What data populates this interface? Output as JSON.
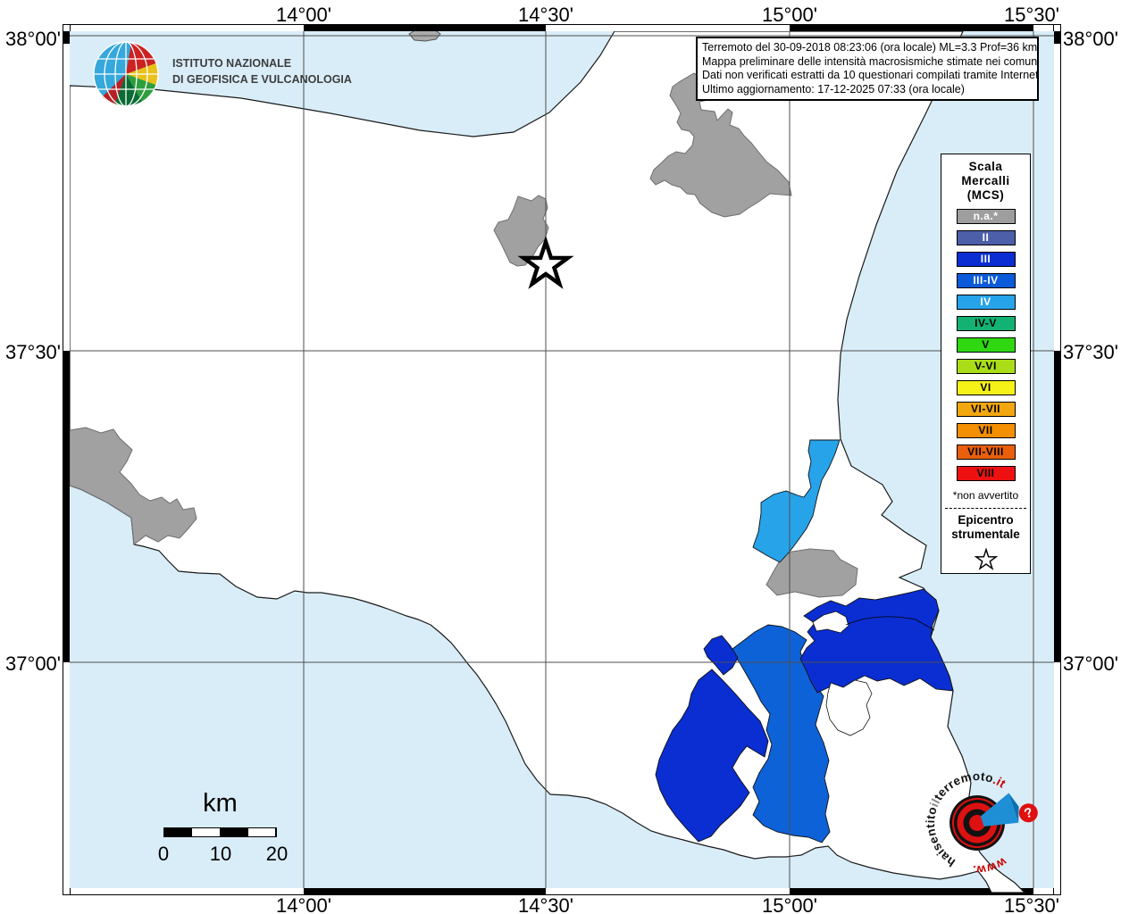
{
  "axes": {
    "top": [
      "14°00'",
      "14°30'",
      "15°00'",
      "15°30'"
    ],
    "bottom": [
      "14°00'",
      "14°30'",
      "15°00'",
      "15°30'"
    ],
    "left": [
      "38°00'",
      "37°30'",
      "37°00'"
    ],
    "right": [
      "38°00'",
      "37°30'",
      "37°00'"
    ]
  },
  "info_box": {
    "lines": [
      "Terremoto del 30-09-2018 08:23:06 (ora locale) ML=3.3 Prof=36 km",
      "Mappa preliminare delle intensità macrosismiche stimate nei comuni",
      "Dati non verificati estratti da 10 questionari compilati tramite Internet.",
      "Ultimo aggiornamento: 17-12-2025 07:33 (ora locale)"
    ]
  },
  "ingv_logo": {
    "line1": "ISTITUTO NAZIONALE",
    "line2": "DI GEOFISICA E VULCANOLOGIA"
  },
  "legend": {
    "title_lines": [
      "Scala",
      "Mercalli",
      "(MCS)"
    ],
    "items": [
      {
        "label": "n.a.*",
        "color": "#9e9e9e",
        "text": "#ffffff"
      },
      {
        "label": "II",
        "color": "#4d5fa9",
        "text": "#ffffff"
      },
      {
        "label": "III",
        "color": "#0a2ed1",
        "text": "#ffffff"
      },
      {
        "label": "III-IV",
        "color": "#0b5ad9",
        "text": "#ffffff"
      },
      {
        "label": "IV",
        "color": "#27a3ea",
        "text": "#ffffff"
      },
      {
        "label": "IV-V",
        "color": "#12b273",
        "text": "#000000"
      },
      {
        "label": "V",
        "color": "#2fd710",
        "text": "#000000"
      },
      {
        "label": "V-VI",
        "color": "#aadd17",
        "text": "#000000"
      },
      {
        "label": "VI",
        "color": "#f6f116",
        "text": "#000000"
      },
      {
        "label": "VI-VII",
        "color": "#f3a70e",
        "text": "#000000"
      },
      {
        "label": "VII",
        "color": "#f38f00",
        "text": "#000000"
      },
      {
        "label": "VII-VIII",
        "color": "#e95f0e",
        "text": "#000000"
      },
      {
        "label": "VIII",
        "color": "#ee1111",
        "text": "#000000"
      }
    ],
    "footnote": "*non avvertito",
    "epicenter_lines": [
      "Epicentro",
      "strumentale"
    ]
  },
  "scale_bar": {
    "unit": "km",
    "ticks": [
      "0",
      "10",
      "20"
    ]
  },
  "site_logo": {
    "text_black1": "haisentito",
    "text_gray": "il",
    "text_black2": "terremoto",
    "text_red": ".it",
    "bottom_text": "www.",
    "question": "?"
  },
  "map": {
    "sea_color": "#d9edf8",
    "land_color": "#ffffff",
    "intensity_fills": {
      "na": "#a1a1a1",
      "III": "#0a2ed1",
      "III_IV": "#0e62d8",
      "IV": "#27a3ea"
    },
    "epicenter_marker": "star"
  }
}
